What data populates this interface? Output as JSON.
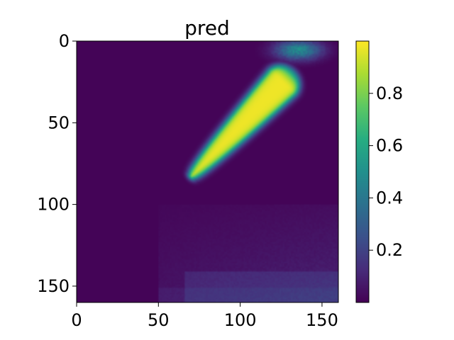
{
  "chart_data": {
    "type": "heatmap",
    "title": "pred",
    "xlabel": "",
    "ylabel": "",
    "xlim": [
      0,
      160
    ],
    "ylim": [
      160,
      0
    ],
    "x_ticks": [
      0,
      50,
      100,
      150
    ],
    "x_tick_labels": [
      "0",
      "50",
      "100",
      "150"
    ],
    "y_ticks": [
      0,
      50,
      100,
      150
    ],
    "y_tick_labels": [
      "0",
      "50",
      "100",
      "150"
    ],
    "grid": false,
    "colormap": "viridis",
    "colorbar": {
      "range": [
        0.0,
        1.0
      ],
      "ticks": [
        0.2,
        0.4,
        0.6,
        0.8
      ],
      "tick_labels": [
        "0.2",
        "0.4",
        "0.6",
        "0.8"
      ]
    },
    "features": [
      {
        "name": "diagonal-band",
        "from": [
          70,
          82
        ],
        "to": [
          125,
          25
        ],
        "peak": 0.98
      },
      {
        "name": "top-right-halo",
        "center": [
          135,
          5
        ],
        "peak": 0.55
      },
      {
        "name": "lower-diffuse-region",
        "x_range": [
          50,
          160
        ],
        "y_range": [
          100,
          160
        ],
        "value": 0.12
      }
    ]
  }
}
